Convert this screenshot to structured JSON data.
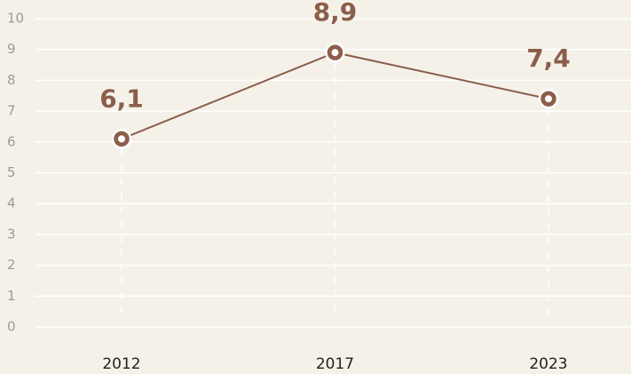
{
  "chart_data": {
    "type": "line",
    "categories": [
      "2012",
      "2017",
      "2023"
    ],
    "series": [
      {
        "color": "#8b5e4b",
        "values": [
          6.1,
          8.9,
          7.4
        ],
        "value_labels": [
          "6,1",
          "8,9",
          "7,4"
        ]
      }
    ],
    "ylim": [
      0,
      10
    ],
    "yticks": [
      0,
      1,
      2,
      3,
      4,
      5,
      6,
      7,
      8,
      9,
      10
    ],
    "grid": true
  }
}
